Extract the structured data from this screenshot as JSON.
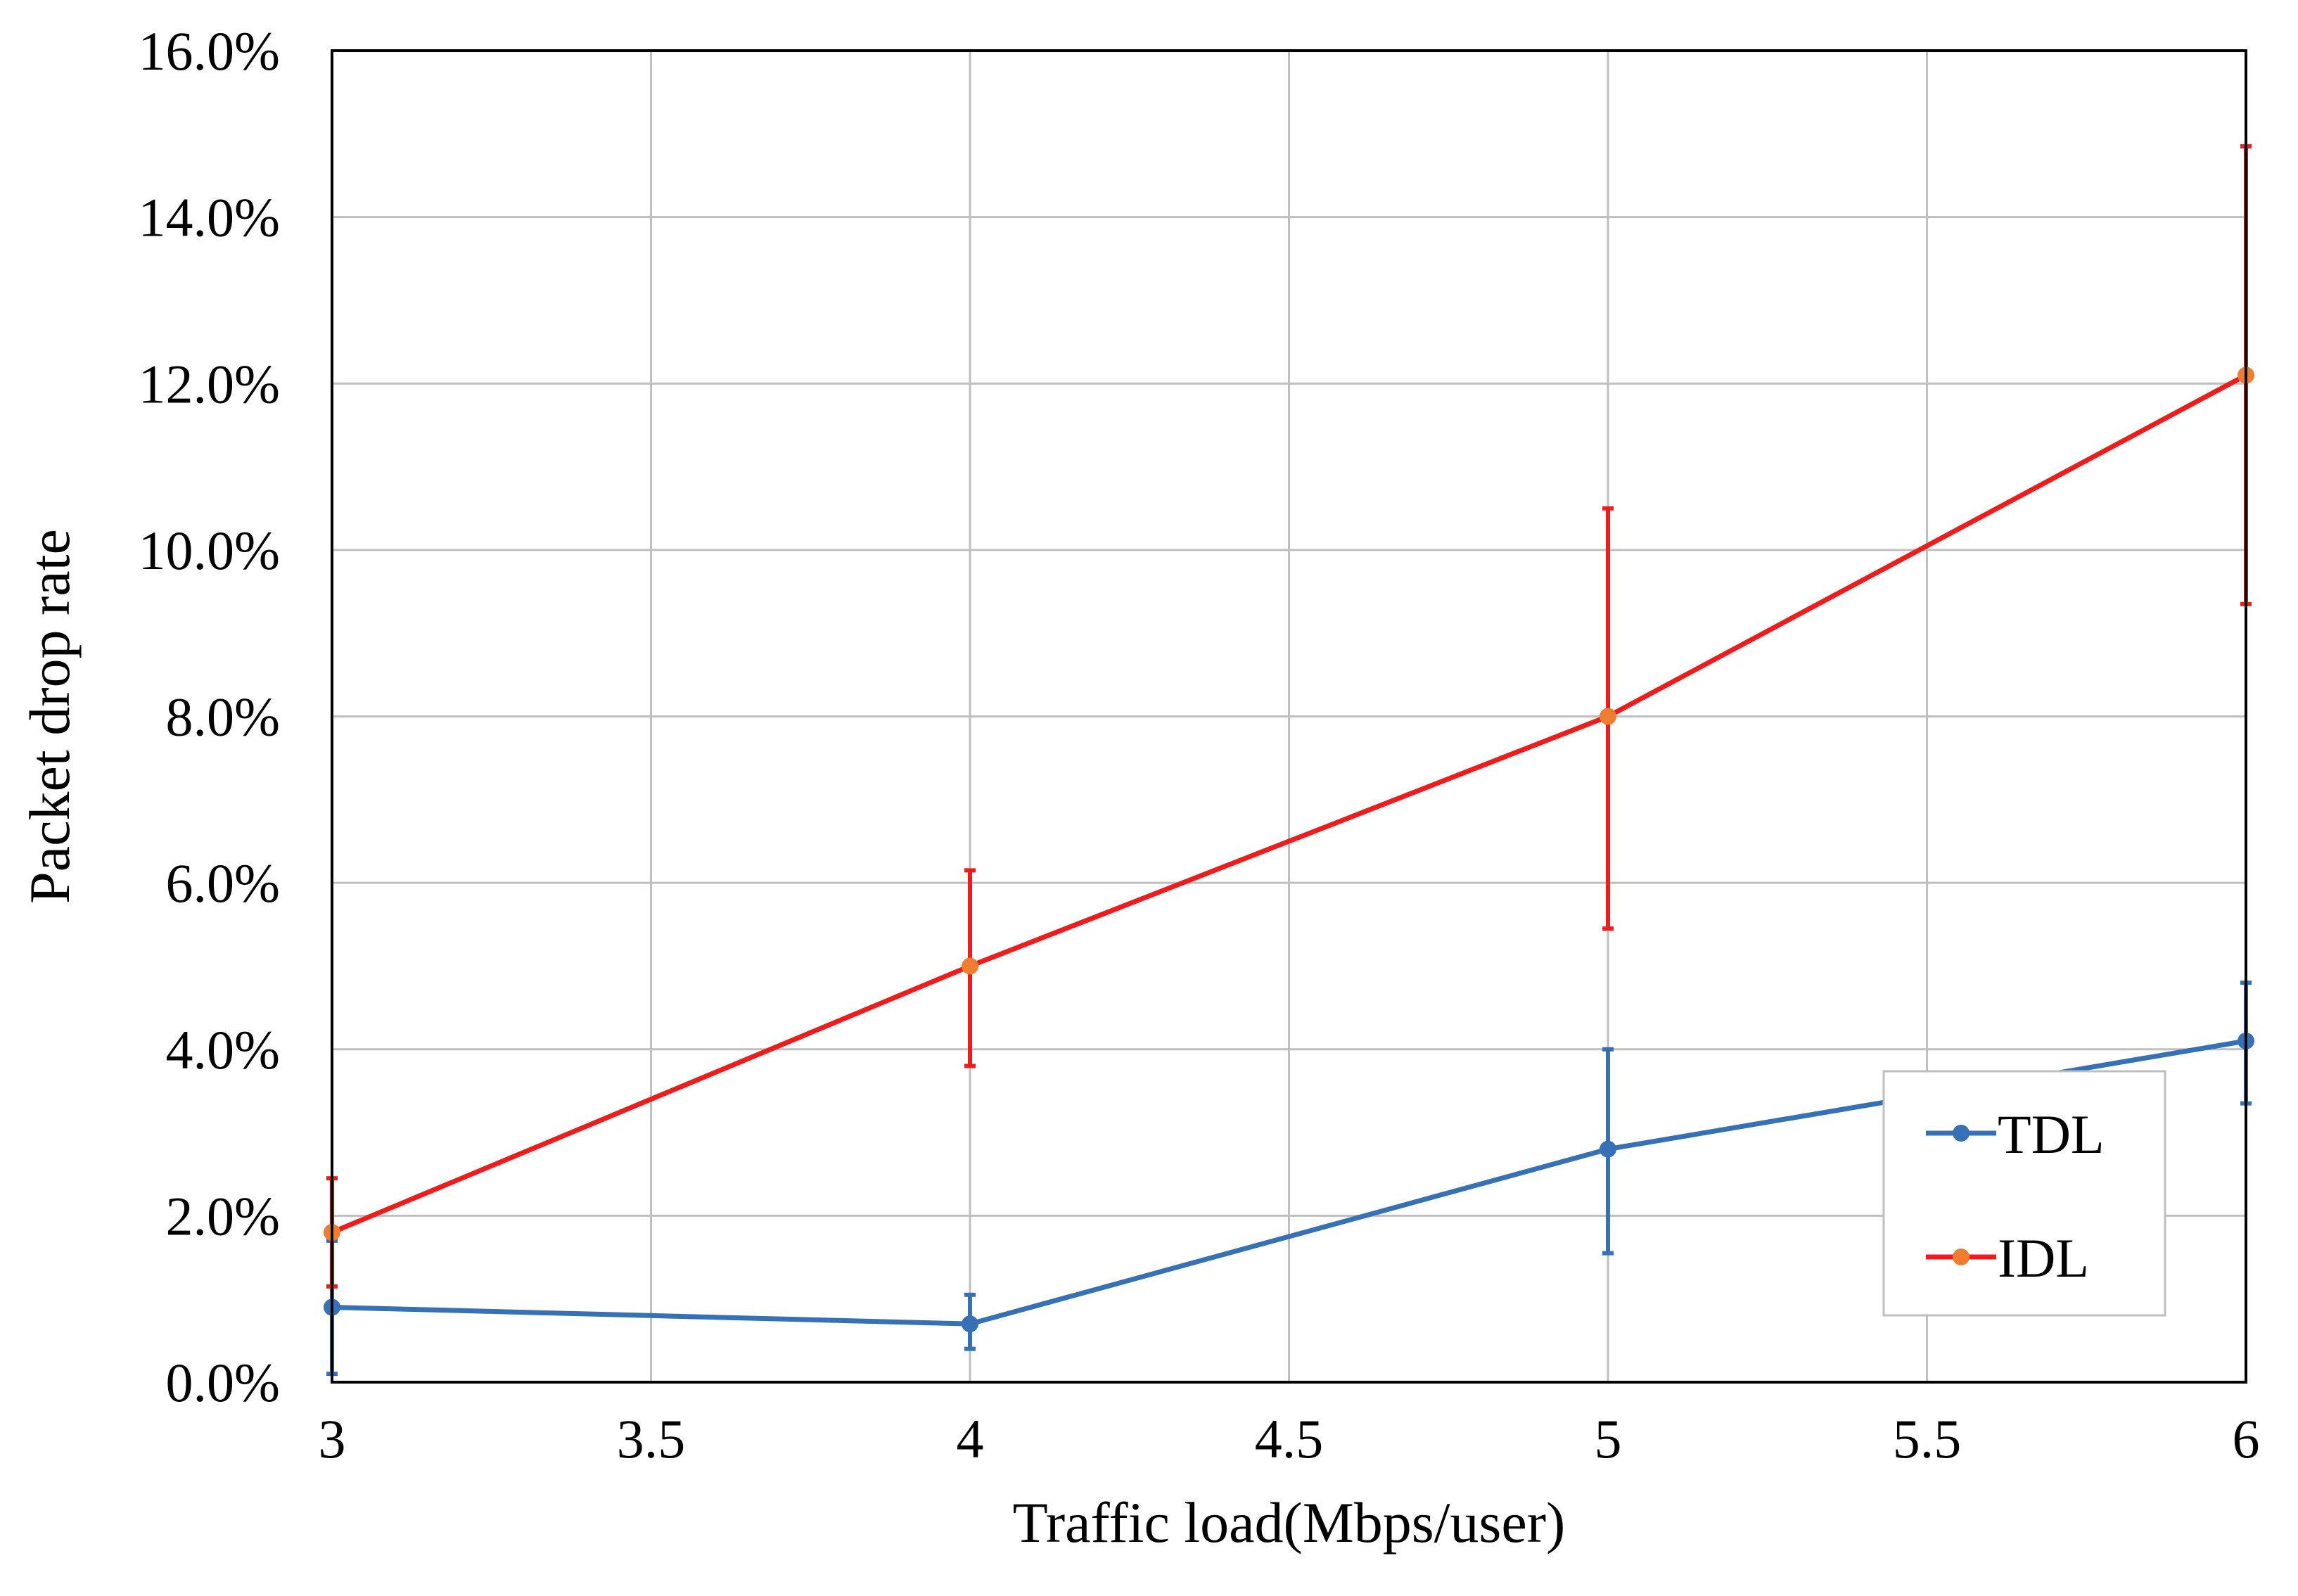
{
  "chart_data": {
    "type": "line",
    "title": "",
    "xlabel": "Traffic load(Mbps/user)",
    "ylabel": "Packet drop rate",
    "xlim": [
      3,
      6
    ],
    "ylim": [
      0,
      16
    ],
    "x_ticks": [
      3,
      3.5,
      4,
      4.5,
      5,
      5.5,
      6
    ],
    "x_tick_labels": [
      "3",
      "3.5",
      "4",
      "4.5",
      "5",
      "5.5",
      "6"
    ],
    "y_ticks": [
      0,
      2,
      4,
      6,
      8,
      10,
      12,
      14,
      16
    ],
    "y_tick_labels": [
      "0.0%",
      "2.0%",
      "4.0%",
      "6.0%",
      "8.0%",
      "10.0%",
      "12.0%",
      "14.0%",
      "16.0%"
    ],
    "y_unit": "%",
    "grid": true,
    "legend_position": "bottom-right",
    "series": [
      {
        "name": "TDL",
        "color": "#3670b5",
        "marker_color": "#3670b5",
        "x": [
          3,
          4,
          5,
          6
        ],
        "y": [
          0.9,
          0.7,
          2.8,
          4.1
        ],
        "err_low": [
          0.1,
          0.4,
          1.55,
          3.35
        ],
        "err_high": [
          1.7,
          1.05,
          4.0,
          4.8
        ]
      },
      {
        "name": "IDL",
        "color": "#f01c1c",
        "marker_color": "#ee7d31",
        "x": [
          3,
          4,
          5,
          6
        ],
        "y": [
          1.8,
          5.0,
          8.0,
          12.1
        ],
        "err_low": [
          1.15,
          3.8,
          5.45,
          9.35
        ],
        "err_high": [
          2.45,
          6.15,
          10.5,
          14.85
        ]
      }
    ]
  }
}
